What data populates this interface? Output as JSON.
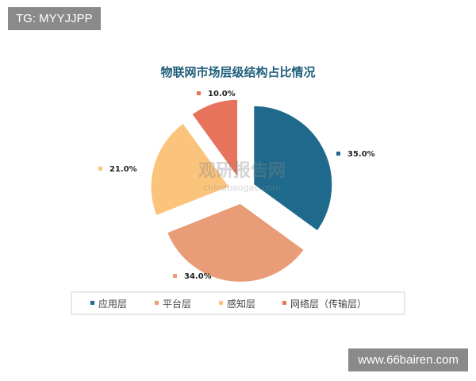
{
  "watermark_top": "TG: MYYJJPP",
  "watermark_bottom": "www.66bairen.com",
  "chart_watermark": {
    "logo_text": "观研报告网",
    "url_text": "chinabaogao.com"
  },
  "chart_data": {
    "type": "pie",
    "title": "物联网市场层级结构占比情况",
    "categories": [
      "应用层",
      "平台层",
      "感知层",
      "网络层（传输层）"
    ],
    "values": [
      35.0,
      34.0,
      21.0,
      10.0
    ],
    "labels": [
      "35.0%",
      "34.0%",
      "21.0%",
      "10.0%"
    ],
    "colors": [
      "#1f6a8c",
      "#e99c78",
      "#fbc47c",
      "#e8735c"
    ],
    "exploded": true,
    "legend_position": "bottom"
  }
}
